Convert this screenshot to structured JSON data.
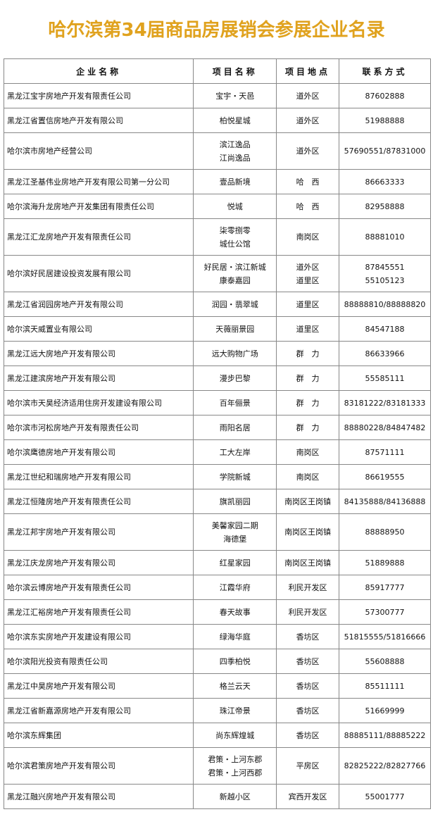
{
  "header": {
    "title": "哈尔滨第34届商品房展销会参展企业名录"
  },
  "table": {
    "columns": [
      "企业名称",
      "项目名称",
      "项目地点",
      "联系方式"
    ],
    "rows": [
      [
        [
          "黑龙江宝宇房地产开发有限责任公司"
        ],
        [
          "宝宇・天邑"
        ],
        [
          "道外区"
        ],
        [
          "87602888"
        ]
      ],
      [
        [
          "黑龙江省置信房地产开发有限公司"
        ],
        [
          "柏悦星城"
        ],
        [
          "道外区"
        ],
        [
          "51988888"
        ]
      ],
      [
        [
          "哈尔滨市房地产经营公司"
        ],
        [
          "滨江逸品",
          "江尚逸品"
        ],
        [
          "道外区"
        ],
        [
          "57690551/87831000"
        ]
      ],
      [
        [
          "黑龙江圣基伟业房地产开发有限公司第一分公司"
        ],
        [
          "壹品新境"
        ],
        [
          "哈　西"
        ],
        [
          "86663333"
        ]
      ],
      [
        [
          "哈尔滨海升龙房地产开发集团有限责任公司"
        ],
        [
          "悦城"
        ],
        [
          "哈　西"
        ],
        [
          "82958888"
        ]
      ],
      [
        [
          "黑龙江汇龙房地产开发有限责任公司"
        ],
        [
          "柒零捌零",
          "城仕公馆"
        ],
        [
          "南岗区"
        ],
        [
          "88881010"
        ]
      ],
      [
        [
          "哈尔滨好民居建设投资发展有限公司"
        ],
        [
          "好民居・滨江新城",
          "康泰嘉园"
        ],
        [
          "道外区",
          "道里区"
        ],
        [
          "87845551",
          "55105123"
        ]
      ],
      [
        [
          "黑龙江省润园房地产开发有限公司"
        ],
        [
          "润园・翡翠城"
        ],
        [
          "道里区"
        ],
        [
          "88888810/88888820"
        ]
      ],
      [
        [
          "哈尔滨天威置业有限公司"
        ],
        [
          "天薇丽景园"
        ],
        [
          "道里区"
        ],
        [
          "84547188"
        ]
      ],
      [
        [
          "黑龙江远大房地产开发有限公司"
        ],
        [
          "远大购物广场"
        ],
        [
          "群　力"
        ],
        [
          "86633966"
        ]
      ],
      [
        [
          "黑龙江建滨房地产开发有限公司"
        ],
        [
          "漫步巴黎"
        ],
        [
          "群　力"
        ],
        [
          "55585111"
        ]
      ],
      [
        [
          "哈尔滨市天昊经济适用住房开发建设有限公司"
        ],
        [
          "百年俪景"
        ],
        [
          "群　力"
        ],
        [
          "83181222/83181333"
        ]
      ],
      [
        [
          "哈尔滨市河松房地产开发有限责任公司"
        ],
        [
          "雨阳名居"
        ],
        [
          "群　力"
        ],
        [
          "88880228/84847482"
        ]
      ],
      [
        [
          "哈尔滨鹰德房地产开发有限公司"
        ],
        [
          "工大左岸"
        ],
        [
          "南岗区"
        ],
        [
          "87571111"
        ]
      ],
      [
        [
          "黑龙江世纪和瑞房地产开发有限公司"
        ],
        [
          "学院新城"
        ],
        [
          "南岗区"
        ],
        [
          "86619555"
        ]
      ],
      [
        [
          "黑龙江恒隆房地产开发有限责任公司"
        ],
        [
          "旗凯丽园"
        ],
        [
          "南岗区王岗镇"
        ],
        [
          "84135888/84136888"
        ]
      ],
      [
        [
          "黑龙江邦宇房地产开发有限公司"
        ],
        [
          "美馨家园二期",
          "海德堡"
        ],
        [
          "南岗区王岗镇"
        ],
        [
          "88888950"
        ]
      ],
      [
        [
          "黑龙江庆龙房地产开发有限公司"
        ],
        [
          "红星家园"
        ],
        [
          "南岗区王岗镇"
        ],
        [
          "51889888"
        ]
      ],
      [
        [
          "哈尔滨云博房地产开发有限责任公司"
        ],
        [
          "江霞华府"
        ],
        [
          "利民开发区"
        ],
        [
          "85917777"
        ]
      ],
      [
        [
          "黑龙江汇裕房地产开发有限责任公司"
        ],
        [
          "春天故事"
        ],
        [
          "利民开发区"
        ],
        [
          "57300777"
        ]
      ],
      [
        [
          "哈尔滨东实房地产开发建设有限公司"
        ],
        [
          "绿海华庭"
        ],
        [
          "香坊区"
        ],
        [
          "51815555/51816666"
        ]
      ],
      [
        [
          "哈尔滨阳光投资有限责任公司"
        ],
        [
          "四季柏悦"
        ],
        [
          "香坊区"
        ],
        [
          "55608888"
        ]
      ],
      [
        [
          "黑龙江中昊房地产开发有限公司"
        ],
        [
          "格兰云天"
        ],
        [
          "香坊区"
        ],
        [
          "85511111"
        ]
      ],
      [
        [
          "黑龙江省新嘉源房地产开发有限公司"
        ],
        [
          "珠江帝景"
        ],
        [
          "香坊区"
        ],
        [
          "51669999"
        ]
      ],
      [
        [
          "哈尔滨东辉集团"
        ],
        [
          "尚东辉煌城"
        ],
        [
          "香坊区"
        ],
        [
          "88885111/88885222"
        ]
      ],
      [
        [
          "哈尔滨君策房地产开发有限公司"
        ],
        [
          "君策・上河东郡",
          "君策・上河西郡"
        ],
        [
          "平房区"
        ],
        [
          "82825222/82827766"
        ]
      ],
      [
        [
          "黑龙江融兴房地产开发有限公司"
        ],
        [
          "新越小区"
        ],
        [
          "宾西开发区"
        ],
        [
          "55001777"
        ]
      ]
    ]
  }
}
